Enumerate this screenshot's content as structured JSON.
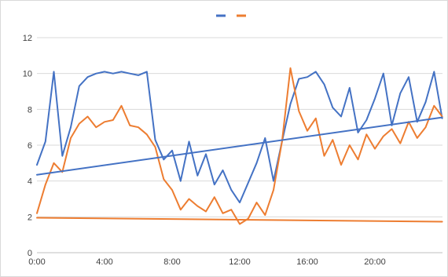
{
  "chart_data": {
    "type": "line",
    "title": "",
    "xlabel": "",
    "ylabel": "",
    "ylim": [
      0,
      12
    ],
    "xlim": [
      "0:00",
      "24:00"
    ],
    "grid": "horizontal",
    "legend": "top-center",
    "y_ticks": [
      "0",
      "2",
      "4",
      "6",
      "8",
      "10",
      "12"
    ],
    "x_ticks": [
      "0:00",
      "4:00",
      "8:00",
      "12:00",
      "16:00",
      "20:00"
    ],
    "colors": {
      "blue": "#4472c4",
      "orange": "#ed7d31",
      "grid": "#d9d9d9"
    },
    "series": [
      {
        "color": "#4472c4",
        "x": [
          "0:00",
          "0:30",
          "1:00",
          "1:30",
          "2:00",
          "2:30",
          "3:00",
          "3:30",
          "4:00",
          "4:30",
          "5:00",
          "5:30",
          "6:00",
          "6:30",
          "7:00",
          "7:30",
          "8:00",
          "8:30",
          "9:00",
          "9:30",
          "10:00",
          "10:30",
          "11:00",
          "11:30",
          "12:00",
          "12:30",
          "13:00",
          "13:30",
          "14:00",
          "14:30",
          "15:00",
          "15:30",
          "16:00",
          "16:30",
          "17:00",
          "17:30",
          "18:00",
          "18:30",
          "19:00",
          "19:30",
          "20:00",
          "20:30",
          "21:00",
          "21:30",
          "22:00",
          "22:30",
          "23:00",
          "23:30",
          "23:59"
        ],
        "values": [
          4.9,
          6.2,
          10.1,
          5.4,
          7.0,
          9.3,
          9.8,
          10.0,
          10.1,
          10.0,
          10.1,
          10.0,
          9.9,
          10.1,
          6.3,
          5.2,
          5.7,
          4.0,
          6.2,
          4.3,
          5.5,
          3.8,
          4.6,
          3.5,
          2.8,
          3.9,
          5.0,
          6.4,
          4.0,
          6.2,
          8.3,
          9.7,
          9.8,
          10.1,
          9.4,
          8.1,
          7.6,
          9.2,
          6.7,
          7.4,
          8.6,
          10.0,
          7.1,
          8.9,
          9.8,
          7.3,
          8.4,
          10.1,
          7.5
        ]
      },
      {
        "color": "#ed7d31",
        "x": [
          "0:00",
          "0:30",
          "1:00",
          "1:30",
          "2:00",
          "2:30",
          "3:00",
          "3:30",
          "4:00",
          "4:30",
          "5:00",
          "5:30",
          "6:00",
          "6:30",
          "7:00",
          "7:30",
          "8:00",
          "8:30",
          "9:00",
          "9:30",
          "10:00",
          "10:30",
          "11:00",
          "11:30",
          "12:00",
          "12:30",
          "13:00",
          "13:30",
          "14:00",
          "14:30",
          "15:00",
          "15:30",
          "16:00",
          "16:30",
          "17:00",
          "17:30",
          "18:00",
          "18:30",
          "19:00",
          "19:30",
          "20:00",
          "20:30",
          "21:00",
          "21:30",
          "22:00",
          "22:30",
          "23:00",
          "23:30",
          "23:59"
        ],
        "values": [
          2.2,
          3.8,
          5.0,
          4.5,
          6.4,
          7.2,
          7.6,
          7.0,
          7.3,
          7.4,
          8.2,
          7.1,
          7.0,
          6.6,
          5.9,
          4.1,
          3.5,
          2.4,
          3.0,
          2.6,
          2.3,
          3.1,
          2.2,
          2.4,
          1.6,
          1.9,
          2.8,
          2.1,
          3.5,
          6.2,
          10.3,
          7.9,
          6.8,
          7.5,
          5.4,
          6.3,
          4.9,
          6.0,
          5.2,
          6.6,
          5.8,
          6.5,
          6.9,
          6.1,
          7.3,
          6.4,
          7.0,
          8.2,
          7.6
        ]
      },
      {
        "color": "#4472c4",
        "x": [
          "0:00",
          "23:59"
        ],
        "values": [
          4.35,
          7.55
        ]
      },
      {
        "color": "#ed7d31",
        "x": [
          "0:00",
          "23:59"
        ],
        "values": [
          1.95,
          1.73
        ]
      }
    ]
  }
}
